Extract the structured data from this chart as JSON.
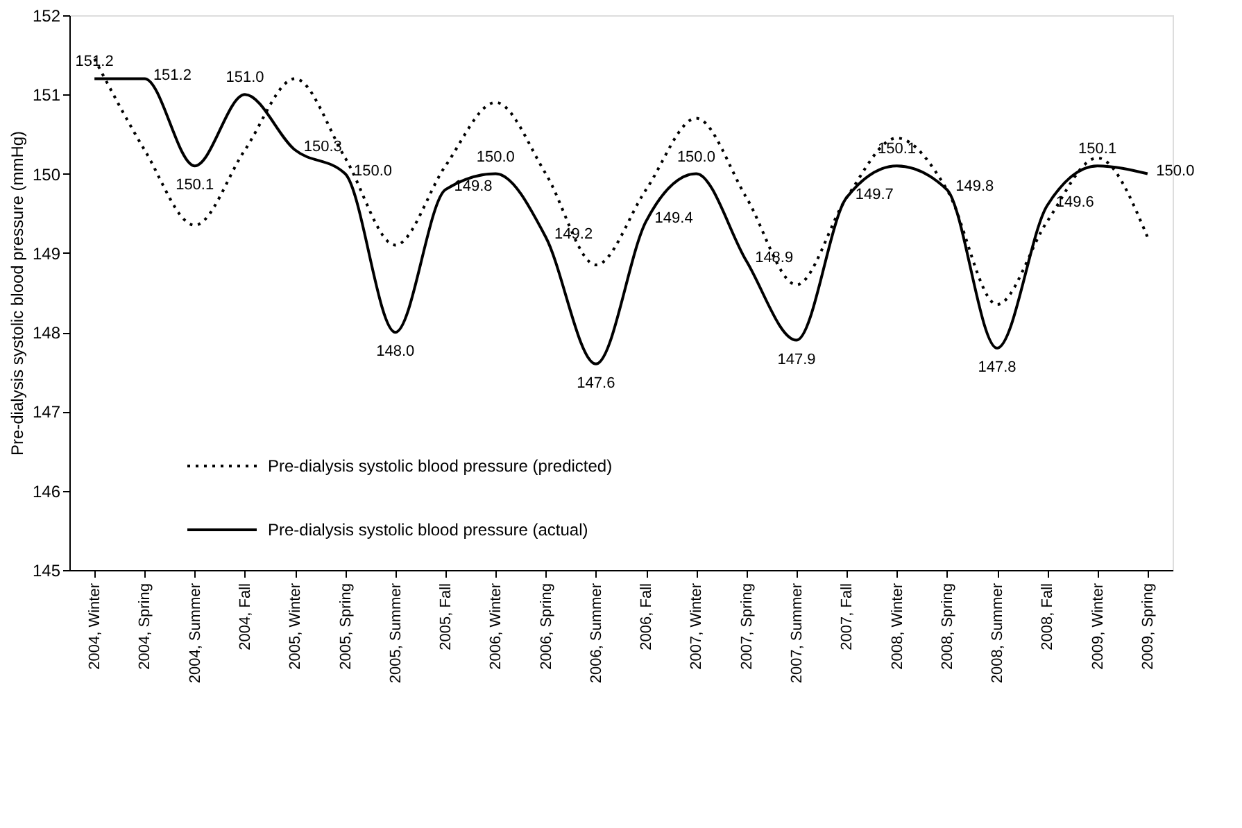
{
  "chart_data": {
    "type": "line",
    "ylabel": "Pre-dialysis systolic blood pressure (mmHg)",
    "categories": [
      "2004, Winter",
      "2004, Spring",
      "2004, Summer",
      "2004, Fall",
      "2005, Winter",
      "2005, Spring",
      "2005, Summer",
      "2005, Fall",
      "2006, Winter",
      "2006, Spring",
      "2006, Summer",
      "2006, Fall",
      "2007, Winter",
      "2007, Spring",
      "2007, Summer",
      "2007, Fall",
      "2008, Winter",
      "2008, Spring",
      "2008, Summer",
      "2008, Fall",
      "2009, Winter",
      "2009, Spring"
    ],
    "series": [
      {
        "name": "Pre-dialysis systolic blood pressure (predicted)",
        "color": "#000000",
        "line_style": "dotted",
        "values": [
          151.45,
          150.3,
          149.35,
          150.3,
          151.2,
          150.2,
          149.1,
          150.1,
          150.9,
          150.0,
          148.85,
          149.8,
          150.7,
          149.7,
          148.6,
          149.7,
          150.45,
          149.8,
          148.35,
          149.4,
          150.2,
          149.2
        ]
      },
      {
        "name": "Pre-dialysis systolic blood pressure (actual)",
        "color": "#000000",
        "line_style": "solid",
        "values": [
          151.2,
          151.2,
          150.1,
          151.0,
          150.3,
          150.0,
          148.0,
          149.8,
          150.0,
          149.2,
          147.6,
          149.4,
          150.0,
          148.9,
          147.9,
          149.7,
          150.1,
          149.8,
          147.8,
          149.6,
          150.1,
          150.0
        ],
        "value_labels": [
          "151.2",
          "151.2",
          "150.1",
          "151.0",
          "150.3",
          "150.0",
          "148.0",
          "149.8",
          "150.0",
          "149.2",
          "147.6",
          "149.4",
          "150.0",
          "148.9",
          "147.9",
          "149.7",
          "150.1",
          "149.8",
          "147.8",
          "149.6",
          "150.1",
          "150.0"
        ]
      }
    ],
    "ylim": [
      145,
      152
    ],
    "yticks": [
      145,
      146,
      147,
      148,
      149,
      150,
      151,
      152
    ],
    "grid": false,
    "marker": "none",
    "legend": "bottom left"
  }
}
